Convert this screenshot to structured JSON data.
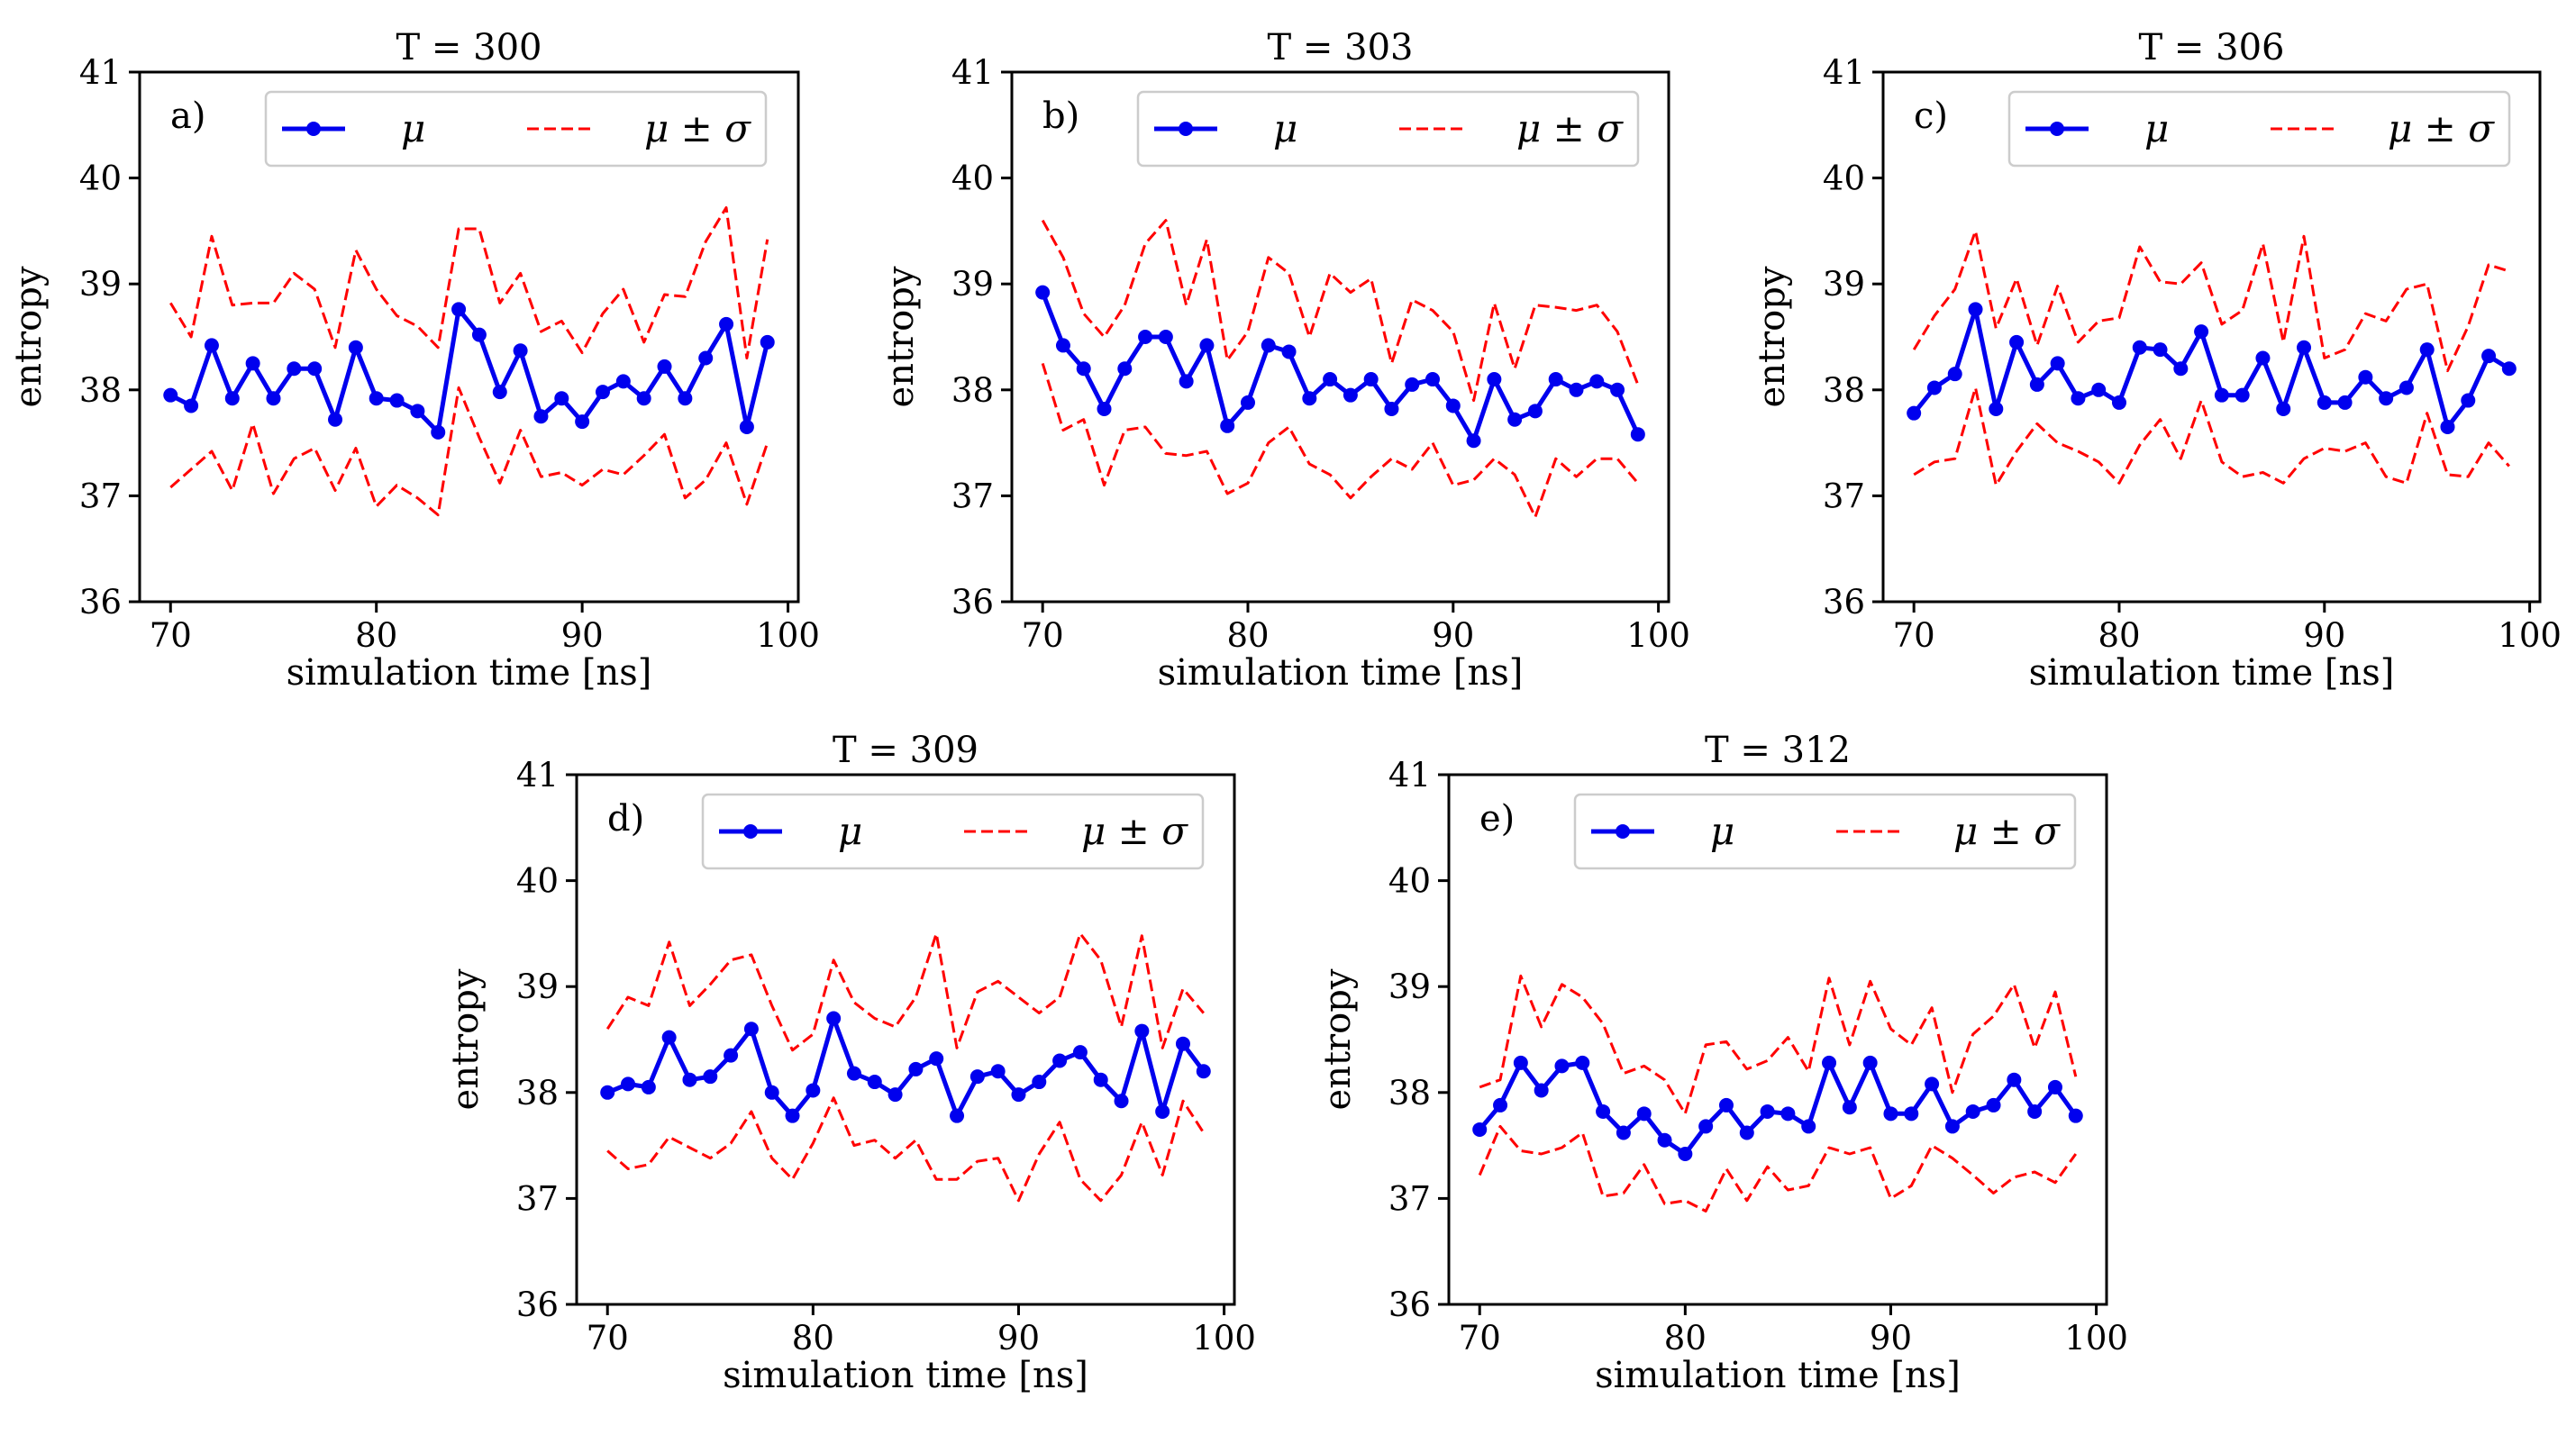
{
  "colors": {
    "mean": "#0000ee",
    "band": "#ff0000",
    "axis": "#000000",
    "legend_border": "#cccccc"
  },
  "legend": {
    "mean_label": "μ",
    "band_label": "μ ± σ"
  },
  "chart_data": [
    {
      "type": "line",
      "panel": "a)",
      "title": "T = 300",
      "xlabel": "simulation time [ns]",
      "ylabel": "entropy",
      "xlim": [
        68.5,
        100.5
      ],
      "ylim": [
        36,
        41
      ],
      "xticks": [
        70,
        80,
        90,
        100
      ],
      "yticks": [
        36,
        37,
        38,
        39,
        40,
        41
      ],
      "x": [
        70,
        71,
        72,
        73,
        74,
        75,
        76,
        77,
        78,
        79,
        80,
        81,
        82,
        83,
        84,
        85,
        86,
        87,
        88,
        89,
        90,
        91,
        92,
        93,
        94,
        95,
        96,
        97,
        98,
        99
      ],
      "series": [
        {
          "name": "μ",
          "style": "solid-marker",
          "values": [
            37.95,
            37.85,
            38.42,
            37.92,
            38.25,
            37.92,
            38.2,
            38.2,
            37.72,
            38.4,
            37.92,
            37.9,
            37.8,
            37.6,
            38.76,
            38.52,
            37.98,
            38.37,
            37.75,
            37.92,
            37.7,
            37.98,
            38.08,
            37.92,
            38.22,
            37.92,
            38.3,
            38.62,
            37.65,
            38.45
          ]
        },
        {
          "name": "μ + σ",
          "style": "dashed",
          "values": [
            38.82,
            38.5,
            39.45,
            38.8,
            38.82,
            38.82,
            39.1,
            38.95,
            38.4,
            39.32,
            38.95,
            38.7,
            38.6,
            38.4,
            39.52,
            39.52,
            38.82,
            39.1,
            38.55,
            38.65,
            38.35,
            38.72,
            38.95,
            38.45,
            38.9,
            38.88,
            39.4,
            39.72,
            38.3,
            39.42
          ]
        },
        {
          "name": "μ − σ",
          "style": "dashed",
          "values": [
            37.08,
            37.25,
            37.42,
            37.05,
            37.68,
            37.02,
            37.35,
            37.45,
            37.05,
            37.45,
            36.9,
            37.1,
            36.98,
            36.82,
            38.02,
            37.55,
            37.12,
            37.62,
            37.18,
            37.22,
            37.1,
            37.25,
            37.2,
            37.38,
            37.58,
            36.98,
            37.15,
            37.5,
            36.92,
            37.5
          ]
        }
      ]
    },
    {
      "type": "line",
      "panel": "b)",
      "title": "T = 303",
      "xlabel": "simulation time [ns]",
      "ylabel": "entropy",
      "xlim": [
        68.5,
        100.5
      ],
      "ylim": [
        36,
        41
      ],
      "xticks": [
        70,
        80,
        90,
        100
      ],
      "yticks": [
        36,
        37,
        38,
        39,
        40,
        41
      ],
      "x": [
        70,
        71,
        72,
        73,
        74,
        75,
        76,
        77,
        78,
        79,
        80,
        81,
        82,
        83,
        84,
        85,
        86,
        87,
        88,
        89,
        90,
        91,
        92,
        93,
        94,
        95,
        96,
        97,
        98,
        99
      ],
      "series": [
        {
          "name": "μ",
          "style": "solid-marker",
          "values": [
            38.92,
            38.42,
            38.2,
            37.82,
            38.2,
            38.5,
            38.5,
            38.08,
            38.42,
            37.66,
            37.88,
            38.42,
            38.36,
            37.92,
            38.1,
            37.95,
            38.1,
            37.82,
            38.05,
            38.1,
            37.85,
            37.52,
            38.1,
            37.72,
            37.8,
            38.1,
            38.0,
            38.08,
            38.0,
            37.58
          ]
        },
        {
          "name": "μ + σ",
          "style": "dashed",
          "values": [
            39.6,
            39.25,
            38.72,
            38.5,
            38.8,
            39.38,
            39.6,
            38.8,
            39.42,
            38.28,
            38.55,
            39.25,
            39.1,
            38.5,
            39.1,
            38.92,
            39.05,
            38.25,
            38.85,
            38.75,
            38.55,
            37.9,
            38.82,
            38.2,
            38.8,
            38.78,
            38.75,
            38.8,
            38.55,
            38.05
          ]
        },
        {
          "name": "μ − σ",
          "style": "dashed",
          "values": [
            38.25,
            37.62,
            37.72,
            37.1,
            37.62,
            37.65,
            37.4,
            37.38,
            37.42,
            37.02,
            37.12,
            37.5,
            37.65,
            37.3,
            37.2,
            36.98,
            37.18,
            37.35,
            37.25,
            37.5,
            37.1,
            37.15,
            37.35,
            37.2,
            36.8,
            37.35,
            37.18,
            37.35,
            37.35,
            37.12
          ]
        }
      ]
    },
    {
      "type": "line",
      "panel": "c)",
      "title": "T = 306",
      "xlabel": "simulation time [ns]",
      "ylabel": "entropy",
      "xlim": [
        68.5,
        100.5
      ],
      "ylim": [
        36,
        41
      ],
      "xticks": [
        70,
        80,
        90,
        100
      ],
      "yticks": [
        36,
        37,
        38,
        39,
        40,
        41
      ],
      "x": [
        70,
        71,
        72,
        73,
        74,
        75,
        76,
        77,
        78,
        79,
        80,
        81,
        82,
        83,
        84,
        85,
        86,
        87,
        88,
        89,
        90,
        91,
        92,
        93,
        94,
        95,
        96,
        97,
        98,
        99
      ],
      "series": [
        {
          "name": "μ",
          "style": "solid-marker",
          "values": [
            37.78,
            38.02,
            38.15,
            38.76,
            37.82,
            38.45,
            38.05,
            38.25,
            37.92,
            38.0,
            37.88,
            38.4,
            38.38,
            38.2,
            38.55,
            37.95,
            37.95,
            38.3,
            37.82,
            38.4,
            37.88,
            37.88,
            38.12,
            37.92,
            38.02,
            38.38,
            37.65,
            37.9,
            38.32,
            38.2
          ]
        },
        {
          "name": "μ + σ",
          "style": "dashed",
          "values": [
            38.38,
            38.7,
            38.95,
            39.5,
            38.58,
            39.05,
            38.42,
            38.98,
            38.45,
            38.65,
            38.68,
            39.35,
            39.02,
            39.0,
            39.2,
            38.62,
            38.75,
            39.38,
            38.45,
            39.45,
            38.3,
            38.38,
            38.72,
            38.65,
            38.95,
            39.0,
            38.18,
            38.6,
            39.18,
            39.12
          ]
        },
        {
          "name": "μ − σ",
          "style": "dashed",
          "values": [
            37.2,
            37.32,
            37.35,
            38.02,
            37.1,
            37.42,
            37.68,
            37.5,
            37.42,
            37.32,
            37.12,
            37.48,
            37.72,
            37.35,
            37.9,
            37.32,
            37.18,
            37.22,
            37.12,
            37.35,
            37.45,
            37.42,
            37.5,
            37.18,
            37.12,
            37.78,
            37.2,
            37.18,
            37.5,
            37.28
          ]
        }
      ]
    },
    {
      "type": "line",
      "panel": "d)",
      "title": "T = 309",
      "xlabel": "simulation time [ns]",
      "ylabel": "entropy",
      "xlim": [
        68.5,
        100.5
      ],
      "ylim": [
        36,
        41
      ],
      "xticks": [
        70,
        80,
        90,
        100
      ],
      "yticks": [
        36,
        37,
        38,
        39,
        40,
        41
      ],
      "x": [
        70,
        71,
        72,
        73,
        74,
        75,
        76,
        77,
        78,
        79,
        80,
        81,
        82,
        83,
        84,
        85,
        86,
        87,
        88,
        89,
        90,
        91,
        92,
        93,
        94,
        95,
        96,
        97,
        98,
        99
      ],
      "series": [
        {
          "name": "μ",
          "style": "solid-marker",
          "values": [
            38.0,
            38.08,
            38.05,
            38.52,
            38.12,
            38.15,
            38.35,
            38.6,
            38.0,
            37.78,
            38.02,
            38.7,
            38.18,
            38.1,
            37.98,
            38.22,
            38.32,
            37.78,
            38.15,
            38.2,
            37.98,
            38.1,
            38.3,
            38.38,
            38.12,
            37.92,
            38.58,
            37.82,
            38.46,
            38.2
          ]
        },
        {
          "name": "μ + σ",
          "style": "dashed",
          "values": [
            38.6,
            38.9,
            38.82,
            39.42,
            38.82,
            39.02,
            39.25,
            39.3,
            38.82,
            38.4,
            38.55,
            39.25,
            38.85,
            38.7,
            38.62,
            38.9,
            39.5,
            38.42,
            38.95,
            39.05,
            38.9,
            38.75,
            38.9,
            39.5,
            39.25,
            38.62,
            39.48,
            38.42,
            38.98,
            38.75
          ]
        },
        {
          "name": "μ − σ",
          "style": "dashed",
          "values": [
            37.45,
            37.28,
            37.32,
            37.58,
            37.48,
            37.38,
            37.52,
            37.82,
            37.38,
            37.18,
            37.52,
            37.95,
            37.5,
            37.55,
            37.38,
            37.55,
            37.18,
            37.18,
            37.35,
            37.38,
            36.98,
            37.42,
            37.72,
            37.18,
            36.98,
            37.22,
            37.72,
            37.22,
            37.92,
            37.62
          ]
        }
      ]
    },
    {
      "type": "line",
      "panel": "e)",
      "title": "T = 312",
      "xlabel": "simulation time [ns]",
      "ylabel": "entropy",
      "xlim": [
        68.5,
        100.5
      ],
      "ylim": [
        36,
        41
      ],
      "xticks": [
        70,
        80,
        90,
        100
      ],
      "yticks": [
        36,
        37,
        38,
        39,
        40,
        41
      ],
      "x": [
        70,
        71,
        72,
        73,
        74,
        75,
        76,
        77,
        78,
        79,
        80,
        81,
        82,
        83,
        84,
        85,
        86,
        87,
        88,
        89,
        90,
        91,
        92,
        93,
        94,
        95,
        96,
        97,
        98,
        99
      ],
      "series": [
        {
          "name": "μ",
          "style": "solid-marker",
          "values": [
            37.65,
            37.88,
            38.28,
            38.02,
            38.25,
            38.28,
            37.82,
            37.62,
            37.8,
            37.55,
            37.42,
            37.68,
            37.88,
            37.62,
            37.82,
            37.8,
            37.68,
            38.28,
            37.86,
            38.28,
            37.8,
            37.8,
            38.08,
            37.68,
            37.82,
            37.88,
            38.12,
            37.82,
            38.05,
            37.78
          ]
        },
        {
          "name": "μ + σ",
          "style": "dashed",
          "values": [
            38.05,
            38.12,
            39.1,
            38.62,
            39.02,
            38.9,
            38.65,
            38.18,
            38.25,
            38.12,
            37.8,
            38.45,
            38.48,
            38.22,
            38.3,
            38.52,
            38.2,
            39.08,
            38.45,
            39.05,
            38.6,
            38.45,
            38.8,
            38.0,
            38.55,
            38.72,
            39.02,
            38.42,
            38.95,
            38.15
          ]
        },
        {
          "name": "μ − σ",
          "style": "dashed",
          "values": [
            37.22,
            37.68,
            37.45,
            37.42,
            37.48,
            37.62,
            37.02,
            37.05,
            37.32,
            36.95,
            36.98,
            36.88,
            37.28,
            36.98,
            37.3,
            37.08,
            37.12,
            37.48,
            37.42,
            37.48,
            37.0,
            37.12,
            37.5,
            37.38,
            37.22,
            37.05,
            37.2,
            37.25,
            37.15,
            37.42
          ]
        }
      ]
    }
  ]
}
